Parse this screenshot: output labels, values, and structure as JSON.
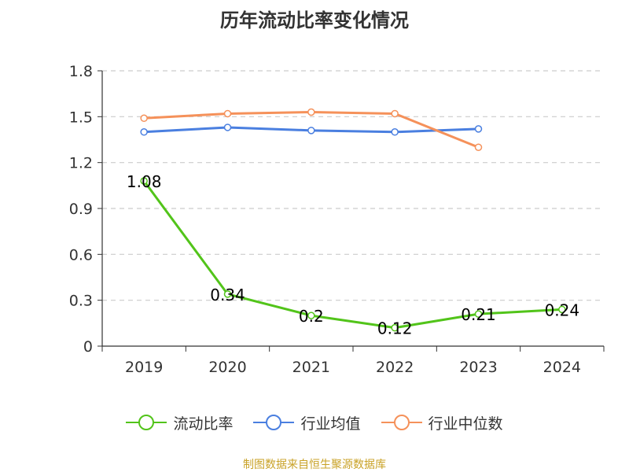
{
  "chart_data": {
    "type": "line",
    "title": "历年流动比率变化情况",
    "categories": [
      "2019",
      "2020",
      "2021",
      "2022",
      "2023",
      "2024"
    ],
    "y_ticks": [
      "0",
      "0.3",
      "0.6",
      "0.9",
      "1.2",
      "1.5",
      "1.8"
    ],
    "ylim": [
      0,
      1.8
    ],
    "grid": true,
    "legend_position": "bottom",
    "series": [
      {
        "name": "流动比率",
        "color": "#52c41a",
        "values": [
          1.08,
          0.34,
          0.2,
          0.12,
          0.21,
          0.24
        ],
        "labels": [
          "1.08",
          "0.34",
          "0.2",
          "0.12",
          "0.21",
          "0.24"
        ],
        "show_labels": true
      },
      {
        "name": "行业均值",
        "color": "#4a7fe0",
        "values": [
          1.4,
          1.43,
          1.41,
          1.4,
          1.42,
          null
        ],
        "show_labels": false
      },
      {
        "name": "行业中位数",
        "color": "#f5915a",
        "values": [
          1.49,
          1.52,
          1.53,
          1.52,
          1.3,
          null
        ],
        "show_labels": false
      }
    ]
  },
  "source_note": "制图数据来自恒生聚源数据库"
}
